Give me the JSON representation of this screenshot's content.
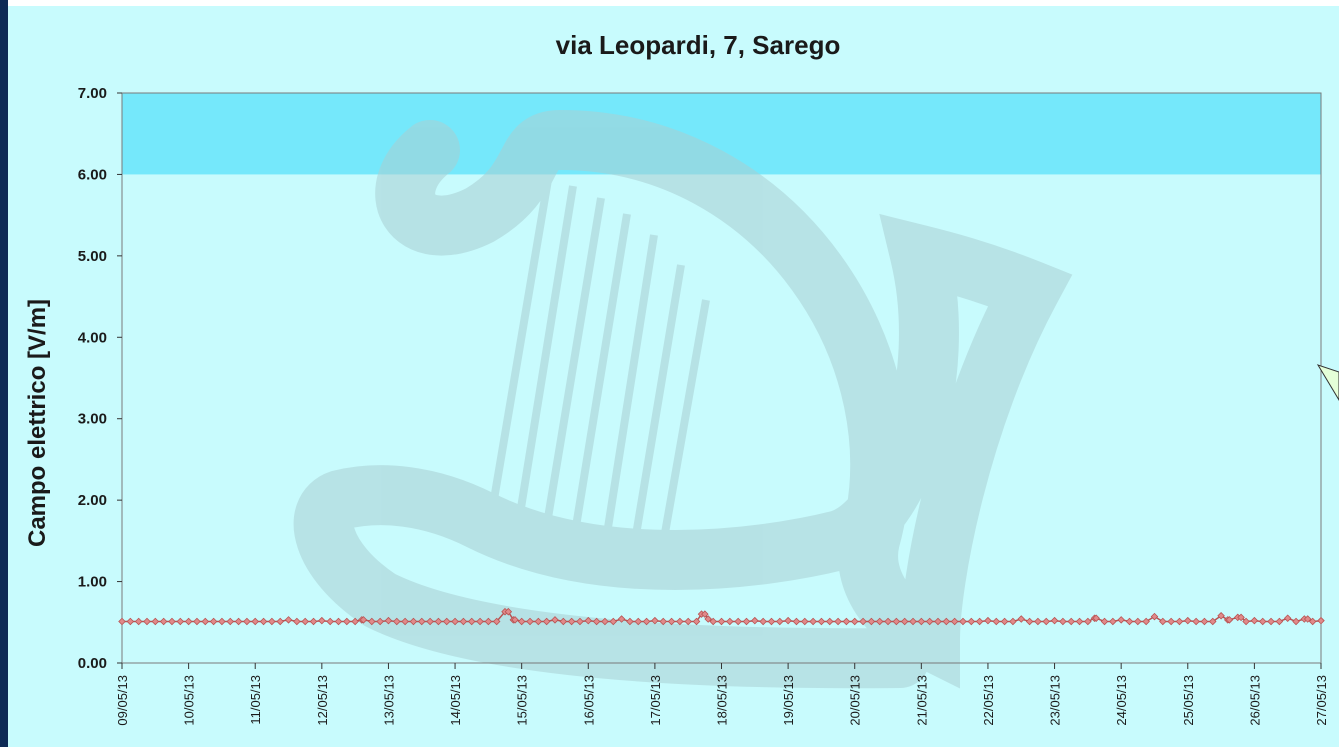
{
  "chart_data": {
    "type": "line",
    "title": "via Leopardi, 7, Sarego",
    "xlabel": "",
    "ylabel": "Campo elettrico [V/m]",
    "ylim": [
      0,
      7
    ],
    "yticks": [
      "0.00",
      "1.00",
      "2.00",
      "3.00",
      "4.00",
      "5.00",
      "6.00",
      "7.00"
    ],
    "threshold_band": {
      "from": 6,
      "to": 7,
      "color": "#75e8fb"
    },
    "x_categories": [
      "09/05/13",
      "10/05/13",
      "11/05/13",
      "12/05/13",
      "13/05/13",
      "14/05/13",
      "15/05/13",
      "16/05/13",
      "17/05/13",
      "18/05/13",
      "19/05/13",
      "20/05/13",
      "21/05/13",
      "22/05/13",
      "23/05/13",
      "24/05/13",
      "25/05/13",
      "26/05/13",
      "27/05/13"
    ],
    "series": [
      {
        "values": [
          {
            "x": 0.0,
            "y": 0.51
          },
          {
            "x": 1.0,
            "y": 0.51
          },
          {
            "x": 2.0,
            "y": 0.51
          },
          {
            "x": 2.5,
            "y": 0.53
          },
          {
            "x": 3.0,
            "y": 0.52
          },
          {
            "x": 3.6,
            "y": 0.53
          },
          {
            "x": 4.0,
            "y": 0.52
          },
          {
            "x": 5.0,
            "y": 0.51
          },
          {
            "x": 5.8,
            "y": 0.63
          },
          {
            "x": 5.9,
            "y": 0.53
          },
          {
            "x": 6.5,
            "y": 0.53
          },
          {
            "x": 7.0,
            "y": 0.52
          },
          {
            "x": 7.5,
            "y": 0.54
          },
          {
            "x": 8.0,
            "y": 0.52
          },
          {
            "x": 8.7,
            "y": 0.6
          },
          {
            "x": 8.8,
            "y": 0.54
          },
          {
            "x": 9.5,
            "y": 0.52
          },
          {
            "x": 10.0,
            "y": 0.52
          },
          {
            "x": 11.0,
            "y": 0.51
          },
          {
            "x": 12.0,
            "y": 0.51
          },
          {
            "x": 13.0,
            "y": 0.52
          },
          {
            "x": 13.5,
            "y": 0.54
          },
          {
            "x": 14.0,
            "y": 0.52
          },
          {
            "x": 14.6,
            "y": 0.55
          },
          {
            "x": 15.0,
            "y": 0.53
          },
          {
            "x": 15.5,
            "y": 0.57
          },
          {
            "x": 16.0,
            "y": 0.52
          },
          {
            "x": 16.5,
            "y": 0.58
          },
          {
            "x": 16.6,
            "y": 0.53
          },
          {
            "x": 16.8,
            "y": 0.56
          },
          {
            "x": 17.0,
            "y": 0.52
          },
          {
            "x": 17.5,
            "y": 0.55
          },
          {
            "x": 17.8,
            "y": 0.54
          },
          {
            "x": 18.0,
            "y": 0.52
          }
        ],
        "color": "#b85252",
        "marker": "diamond",
        "marker_fill": "#e08a8a",
        "baseline": 0.51
      }
    ],
    "plot_background": "#c8fbfd",
    "page_background": "#c8fbfd",
    "watermark": "harp logo"
  }
}
